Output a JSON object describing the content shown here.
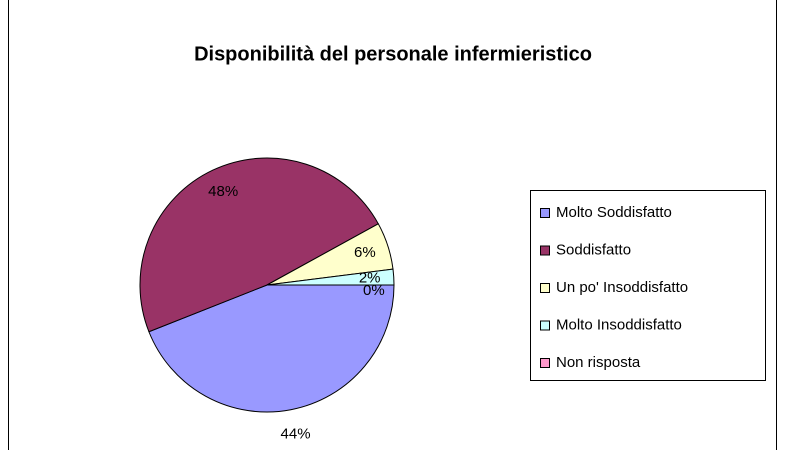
{
  "chart_data": {
    "type": "pie",
    "title": "Disponibilità del personale infermieristico",
    "categories": [
      "Molto Soddisfatto",
      "Soddisfatto",
      "Un po' Insoddisfatto",
      "Molto Insoddisfatto",
      "Non risposta"
    ],
    "values": [
      44,
      48,
      6,
      2,
      0
    ],
    "value_labels": [
      "44%",
      "48%",
      "6%",
      "2%",
      "0%"
    ],
    "colors": [
      "#9999ff",
      "#993366",
      "#ffffcc",
      "#ccffff",
      "#ff99cc"
    ],
    "legend": "right"
  }
}
